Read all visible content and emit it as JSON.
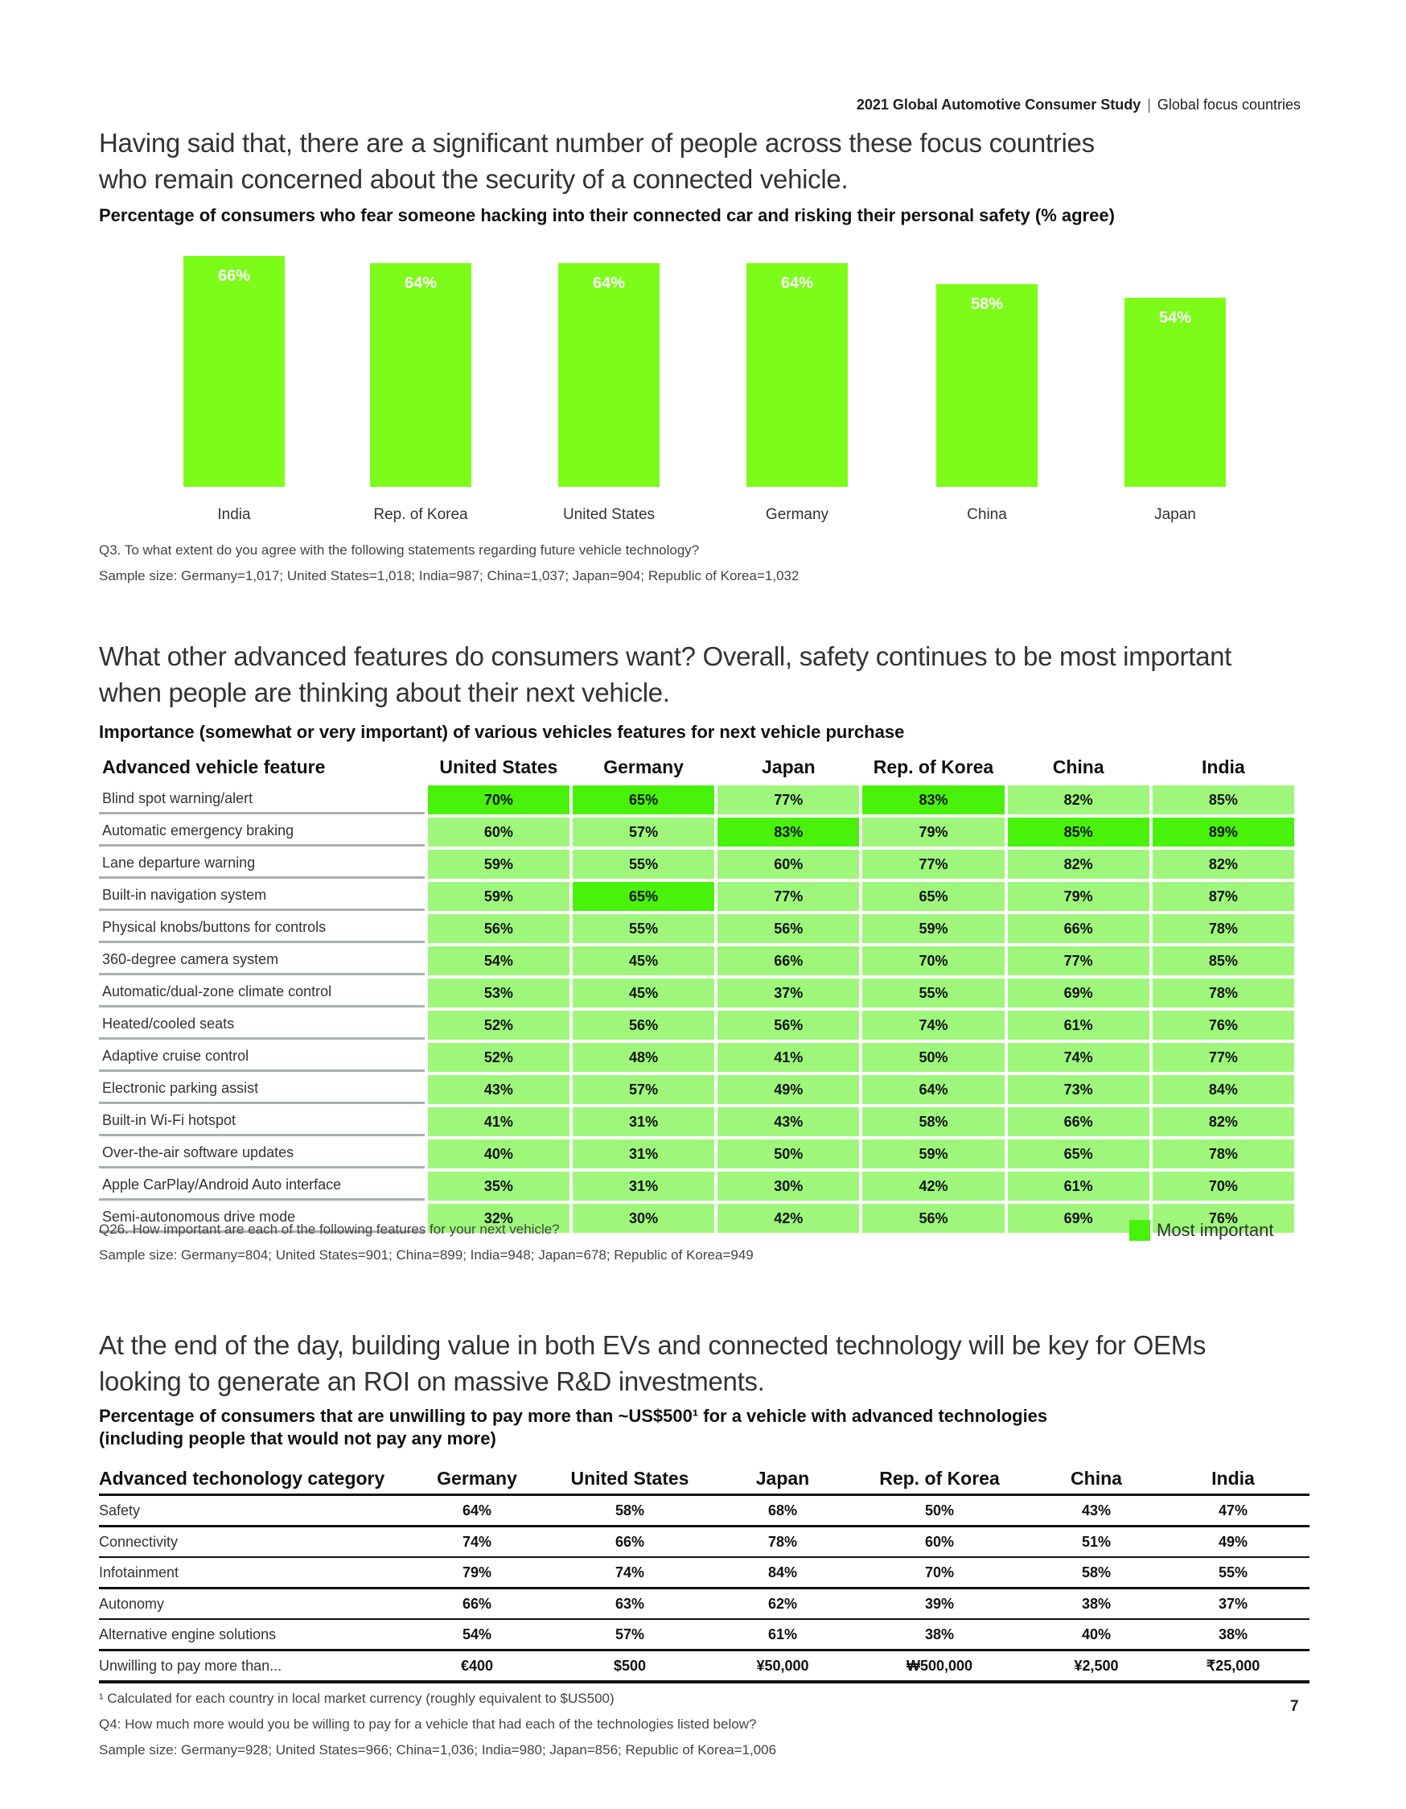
{
  "header": {
    "title": "2021 Global Automotive Consumer Study",
    "section": "Global focus countries"
  },
  "section1": {
    "heading": [
      "Having said that, there are a significant number of people across these focus countries",
      "who remain concerned about the security of a connected vehicle."
    ],
    "subtitle": "Percentage of consumers who fear someone hacking into their connected car and risking their personal safety (% agree)",
    "notes": [
      "Q3. To what extent do you agree with the following statements regarding future vehicle technology?",
      "Sample size: Germany=1,017; United States=1,018; India=987; China=1,037; Japan=904; Republic of Korea=1,032"
    ]
  },
  "chart_data": {
    "type": "bar",
    "title": "Percentage of consumers who fear someone hacking into their connected car and risking their personal safety (% agree)",
    "categories": [
      "India",
      "Rep. of Korea",
      "United States",
      "Germany",
      "China",
      "Japan"
    ],
    "values": [
      66,
      64,
      64,
      64,
      58,
      54
    ],
    "labels": [
      "66%",
      "64%",
      "64%",
      "64%",
      "58%",
      "54%"
    ],
    "unit": "%",
    "ylim": [
      0,
      100
    ],
    "grid": false,
    "color": "#7dfc1a"
  },
  "section2": {
    "heading": [
      "What other advanced features do consumers want? Overall, safety continues to be most important",
      "when people are thinking about their next vehicle."
    ],
    "subtitle": "Importance (somewhat or very important) of various vehicles features for next vehicle purchase",
    "columns": [
      "Advanced vehicle feature",
      "United States",
      "Germany",
      "Japan",
      "Rep. of Korea",
      "China",
      "India"
    ],
    "rows": [
      {
        "label": "Blind spot warning/alert",
        "values": [
          "70%",
          "65%",
          "77%",
          "83%",
          "82%",
          "85%"
        ],
        "top": [
          true,
          true,
          false,
          true,
          false,
          false
        ]
      },
      {
        "label": "Automatic emergency braking",
        "values": [
          "60%",
          "57%",
          "83%",
          "79%",
          "85%",
          "89%"
        ],
        "top": [
          false,
          false,
          true,
          false,
          true,
          true
        ]
      },
      {
        "label": "Lane departure warning",
        "values": [
          "59%",
          "55%",
          "60%",
          "77%",
          "82%",
          "82%"
        ]
      },
      {
        "label": "Built-in navigation system",
        "values": [
          "59%",
          "65%",
          "77%",
          "65%",
          "79%",
          "87%"
        ],
        "top": [
          false,
          true,
          false,
          false,
          false,
          false
        ]
      },
      {
        "label": "Physical knobs/buttons for controls",
        "values": [
          "56%",
          "55%",
          "56%",
          "59%",
          "66%",
          "78%"
        ]
      },
      {
        "label": "360-degree camera system",
        "values": [
          "54%",
          "45%",
          "66%",
          "70%",
          "77%",
          "85%"
        ]
      },
      {
        "label": "Automatic/dual-zone climate control",
        "values": [
          "53%",
          "45%",
          "37%",
          "55%",
          "69%",
          "78%"
        ]
      },
      {
        "label": "Heated/cooled seats",
        "values": [
          "52%",
          "56%",
          "56%",
          "74%",
          "61%",
          "76%"
        ]
      },
      {
        "label": "Adaptive cruise control",
        "values": [
          "52%",
          "48%",
          "41%",
          "50%",
          "74%",
          "77%"
        ]
      },
      {
        "label": "Electronic parking assist",
        "values": [
          "43%",
          "57%",
          "49%",
          "64%",
          "73%",
          "84%"
        ]
      },
      {
        "label": "Built-in Wi-Fi hotspot",
        "values": [
          "41%",
          "31%",
          "43%",
          "58%",
          "66%",
          "82%"
        ]
      },
      {
        "label": "Over-the-air software updates",
        "values": [
          "40%",
          "31%",
          "50%",
          "59%",
          "65%",
          "78%"
        ]
      },
      {
        "label": "Apple CarPlay/Android Auto interface",
        "values": [
          "35%",
          "31%",
          "30%",
          "42%",
          "61%",
          "70%"
        ]
      },
      {
        "label": "Semi-autonomous drive mode",
        "values": [
          "32%",
          "30%",
          "42%",
          "56%",
          "69%",
          "76%"
        ]
      }
    ],
    "legend": "Most important",
    "colors": {
      "normal": "#9ef77b",
      "most_important": "#48f20a"
    },
    "notes": [
      "Q26. How important are each of the following features for your next vehicle?",
      "Sample size: Germany=804; United States=901; China=899; India=948; Japan=678; Republic of Korea=949"
    ]
  },
  "section3": {
    "heading": [
      "At the end of the day, building value in both EVs and connected technology will be key for OEMs",
      "looking to generate an ROI on massive R&D investments."
    ],
    "subtitle": [
      "Percentage of consumers that are unwilling to pay more than ~US$500¹ for a vehicle with advanced technologies",
      "(including people that would not pay any more)"
    ],
    "columns": [
      "Advanced techonology category",
      "Germany",
      "United States",
      "Japan",
      "Rep. of Korea",
      "China",
      "India"
    ],
    "rows": [
      {
        "label": "Safety",
        "values": [
          "64%",
          "58%",
          "68%",
          "50%",
          "43%",
          "47%"
        ]
      },
      {
        "label": "Connectivity",
        "values": [
          "74%",
          "66%",
          "78%",
          "60%",
          "51%",
          "49%"
        ]
      },
      {
        "label": "Infotainment",
        "values": [
          "79%",
          "74%",
          "84%",
          "70%",
          "58%",
          "55%"
        ]
      },
      {
        "label": "Autonomy",
        "values": [
          "66%",
          "63%",
          "62%",
          "39%",
          "38%",
          "37%"
        ]
      },
      {
        "label": "Alternative engine solutions",
        "values": [
          "54%",
          "57%",
          "61%",
          "38%",
          "40%",
          "38%"
        ]
      },
      {
        "label": "Unwilling to pay more than...",
        "values": [
          "€400",
          "$500",
          "¥50,000",
          "₩500,000",
          "¥2,500",
          "₹25,000"
        ]
      }
    ],
    "notes": [
      "¹ Calculated for each country in local market currency (roughly equivalent to $US500)",
      "Q4: How much more would you be willing to pay for a vehicle that had each of the technologies listed below?",
      "Sample size: Germany=928; United States=966; China=1,036; India=980; Japan=856; Republic of Korea=1,006"
    ]
  },
  "page_number": "7"
}
